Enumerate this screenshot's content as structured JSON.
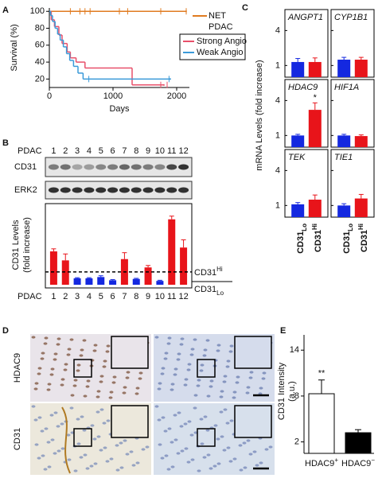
{
  "panels": [
    "A",
    "B",
    "C",
    "D",
    "E"
  ],
  "blot": {
    "label": "PDAC",
    "lanes": [
      "1",
      "2",
      "3",
      "4",
      "5",
      "6",
      "7",
      "8",
      "9",
      "10",
      "11",
      "12"
    ],
    "bands": [
      "CD31",
      "ERK2"
    ]
  },
  "micrographs": {
    "rows": [
      "HDAC9",
      "CD31"
    ]
  },
  "chart_data": [
    {
      "type": "line",
      "xlabel": "Days",
      "ylabel": "Survival (%)",
      "xlim": [
        0,
        2200
      ],
      "ylim": [
        10,
        104
      ],
      "xticks": [
        0,
        1000,
        2000
      ],
      "yticks": [
        20,
        40,
        60,
        80,
        100
      ],
      "series": [
        {
          "name": "NET PDAC",
          "color": "#e07b20",
          "x": [
            0,
            2150
          ],
          "values": [
            100,
            100
          ],
          "censored_x": [
            330,
            480,
            560,
            640,
            1100,
            1230,
            1750,
            2150
          ]
        },
        {
          "name": "Strong Angio",
          "color": "#e8506a",
          "x": [
            0,
            30,
            80,
            150,
            200,
            280,
            330,
            420,
            560,
            1300,
            1800
          ],
          "values": [
            100,
            90,
            82,
            72,
            62,
            52,
            45,
            40,
            33,
            13,
            13
          ],
          "censored_x": [
            1750,
            1850
          ]
        },
        {
          "name": "Weak Angio",
          "color": "#3a9ad9",
          "x": [
            0,
            20,
            50,
            90,
            130,
            170,
            220,
            270,
            320,
            380,
            450,
            530,
            1900
          ],
          "values": [
            100,
            95,
            88,
            80,
            73,
            66,
            58,
            50,
            42,
            35,
            27,
            20,
            20
          ],
          "censored_x": [
            620,
            1880
          ]
        }
      ]
    },
    {
      "type": "bar",
      "ylabel": [
        "CD31 Levels",
        "(fold increase)"
      ],
      "xlabel": "PDAC",
      "categories": [
        "1",
        "2",
        "3",
        "4",
        "5",
        "6",
        "7",
        "8",
        "9",
        "10",
        "11",
        "12"
      ],
      "values": [
        2.6,
        1.9,
        0.5,
        0.5,
        0.6,
        0.35,
        2.0,
        0.45,
        1.35,
        0.3,
        5.1,
        2.9
      ],
      "errors": [
        0.2,
        0.5,
        0.05,
        0.05,
        0.1,
        0.05,
        0.5,
        0.05,
        0.15,
        0.05,
        0.25,
        0.6
      ],
      "colors": [
        "#e8141a",
        "#e8141a",
        "#1428e0",
        "#1428e0",
        "#1428e0",
        "#1428e0",
        "#e8141a",
        "#1428e0",
        "#e8141a",
        "#1428e0",
        "#e8141a",
        "#e8141a"
      ],
      "ylim": [
        0,
        6.2
      ],
      "threshold": 1,
      "groups": [
        {
          "text": "CD31",
          "sup": "Hi",
          "color": "#e8141a"
        },
        {
          "text": "CD31",
          "sub": "Lo",
          "color": "#1428e0"
        }
      ]
    },
    {
      "type": "bar",
      "ylabel": "mRNA Levels (fold increase)",
      "ylim": [
        0,
        5.8
      ],
      "yticks": [
        1,
        4
      ],
      "categories": [
        {
          "text": "CD31",
          "sub": "Lo",
          "color": "#1428e0"
        },
        {
          "text": "CD31",
          "sup": "Hi",
          "color": "#e8141a"
        }
      ],
      "panels": [
        {
          "title": "ANGPT1",
          "values": [
            1.3,
            1.3
          ],
          "errors": [
            0.3,
            0.35
          ]
        },
        {
          "title": "CYP1B1",
          "values": [
            1.5,
            1.5
          ],
          "errors": [
            0.2,
            0.2
          ]
        },
        {
          "title": "HDAC9",
          "values": [
            1.0,
            3.2
          ],
          "errors": [
            0.1,
            0.6
          ],
          "annotation": "*"
        },
        {
          "title": "HIF1A",
          "values": [
            1.0,
            0.95
          ],
          "errors": [
            0.1,
            0.1
          ]
        },
        {
          "title": "TEK",
          "values": [
            1.1,
            1.5
          ],
          "errors": [
            0.15,
            0.4
          ]
        },
        {
          "title": "TIE1",
          "values": [
            1.0,
            1.6
          ],
          "errors": [
            0.15,
            0.35
          ]
        }
      ]
    },
    {
      "type": "bar",
      "ylabel": [
        "CD31 Intensity",
        "(a.u.)"
      ],
      "categories": [
        {
          "text": "HDAC9",
          "sup": "+"
        },
        {
          "text": "HDAC9",
          "sup": "−"
        }
      ],
      "values": [
        8.3,
        3.2
      ],
      "errors": [
        1.8,
        0.4
      ],
      "colors": [
        "#ffffff",
        "#000000"
      ],
      "ylim": [
        0.5,
        16
      ],
      "yticks": [
        2,
        8,
        14
      ],
      "annotation": "**"
    }
  ]
}
